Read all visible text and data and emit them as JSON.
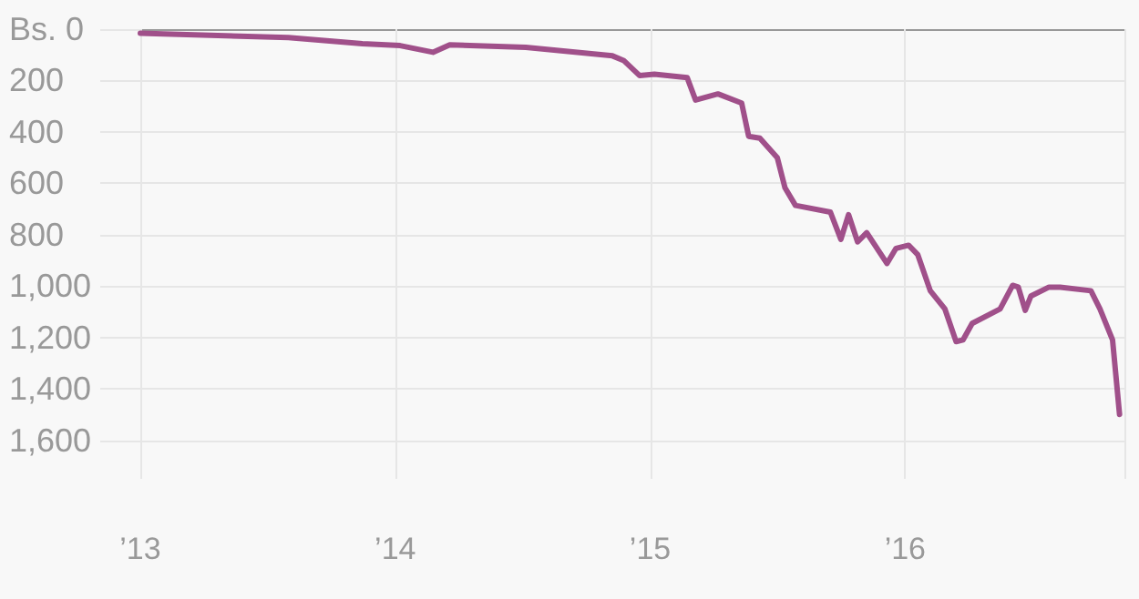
{
  "chart_data": {
    "type": "line",
    "grid": true,
    "marker": "none",
    "line_style": "solid",
    "x": [
      "2013-01-01",
      "2013-08-01",
      "2013-11-15",
      "2014-01-08",
      "2014-02-24",
      "2014-03-20",
      "2014-07-07",
      "2014-11-08",
      "2014-11-24",
      "2014-12-17",
      "2015-01-07",
      "2015-02-23",
      "2015-03-07",
      "2015-04-08",
      "2015-05-12",
      "2015-05-22",
      "2015-06-07",
      "2015-07-02",
      "2015-07-13",
      "2015-07-28",
      "2015-09-16",
      "2015-10-01",
      "2015-10-12",
      "2015-10-25",
      "2015-11-07",
      "2015-12-06",
      "2015-12-19",
      "2016-01-06",
      "2016-01-19",
      "2016-02-06",
      "2016-02-27",
      "2016-03-14",
      "2016-03-24",
      "2016-04-06",
      "2016-05-16",
      "2016-06-03",
      "2016-06-11",
      "2016-06-21",
      "2016-06-29",
      "2016-07-25",
      "2016-08-10",
      "2016-09-23",
      "2016-10-06",
      "2016-10-24",
      "2016-11-03"
    ],
    "series": [
      {
        "color": "#a0508a",
        "values": [
          16,
          33,
          57,
          64,
          90,
          61,
          71,
          104,
          122,
          181,
          175,
          189,
          276,
          252,
          288,
          417,
          424,
          500,
          617,
          686,
          712,
          818,
          722,
          828,
          792,
          912,
          853,
          841,
          877,
          1018,
          1089,
          1216,
          1209,
          1145,
          1089,
          997,
          1004,
          1094,
          1039,
          1004,
          1004,
          1018,
          1089,
          1209,
          1499
        ]
      }
    ],
    "xlim": [
      "2013-01-01",
      "2016-11-10"
    ],
    "xticks": [
      {
        "value": "2013",
        "label": "’13"
      },
      {
        "value": "2014",
        "label": "’14"
      },
      {
        "value": "2015",
        "label": "’15"
      },
      {
        "value": "2016",
        "label": "’16"
      }
    ],
    "ylim": [
      1750,
      0
    ],
    "yticks": [
      {
        "value": 0,
        "label": "Bs. 0"
      },
      200,
      400,
      600,
      800,
      {
        "value": 1000,
        "label": "1,000"
      },
      {
        "value": 1200,
        "label": "1,200"
      },
      {
        "value": 1400,
        "label": "1,400"
      },
      {
        "value": 1600,
        "label": "1,600"
      }
    ]
  }
}
